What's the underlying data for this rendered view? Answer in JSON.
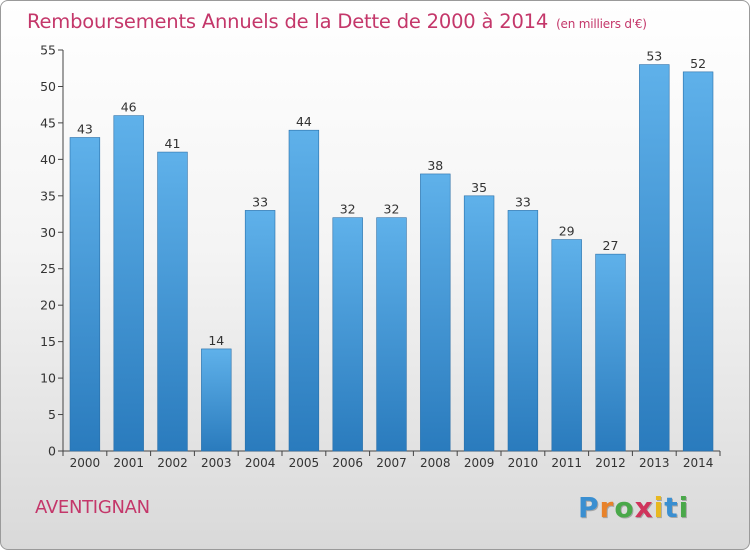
{
  "title": "Remboursements Annuels de la Dette de 2000 à 2014",
  "subtitle": "(en milliers d'€)",
  "commune": "AVENTIGNAN",
  "logo": {
    "letters": [
      "P",
      "r",
      "o",
      "x",
      "i",
      "t",
      "i"
    ],
    "colors": [
      "#3a8fd1",
      "#e8822a",
      "#4aa84a",
      "#d0345c",
      "#e8b820",
      "#3a8fd1",
      "#4aa84a"
    ]
  },
  "colors": {
    "bar_top": "#5fb1ea",
    "bar_bottom": "#2a7bbd",
    "title": "#c4376a"
  },
  "chart_data": {
    "type": "bar",
    "categories": [
      "2000",
      "2001",
      "2002",
      "2003",
      "2004",
      "2005",
      "2006",
      "2007",
      "2008",
      "2009",
      "2010",
      "2011",
      "2012",
      "2013",
      "2014"
    ],
    "values": [
      43,
      46,
      41,
      14,
      33,
      44,
      32,
      32,
      38,
      35,
      33,
      29,
      27,
      53,
      52
    ],
    "ylim": [
      0,
      55
    ],
    "yticks": [
      0,
      5,
      10,
      15,
      20,
      25,
      30,
      35,
      40,
      45,
      50,
      55
    ],
    "grid": false,
    "legend": "none"
  }
}
